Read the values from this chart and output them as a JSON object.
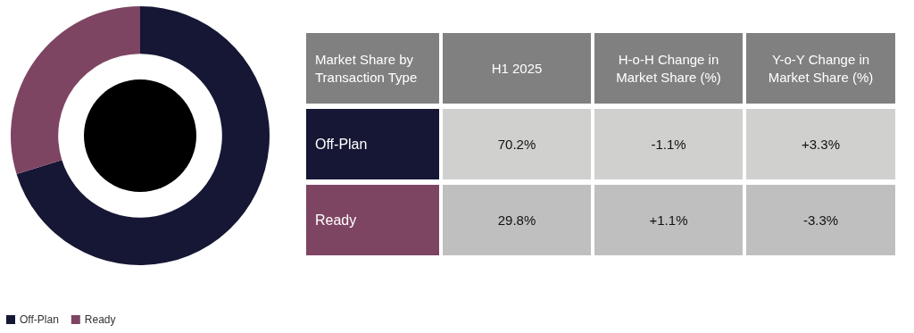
{
  "chart_data": [
    {
      "type": "donut",
      "categories": [
        "Off-Plan",
        "Ready"
      ],
      "values": [
        70.2,
        29.8
      ],
      "colors": [
        "#151734",
        "#7e4563"
      ],
      "legend": "bottom left"
    },
    {
      "type": "other",
      "title": "Market Share by Transaction Type",
      "categories": [
        "H1 2025",
        "H-o-H Change in Market Share (%)",
        "Y-o-Y Change in Market Share (%)"
      ],
      "y_categories": [
        "Off-Plan",
        "Ready"
      ],
      "cell_labels": [
        [
          "70.2%",
          "-1.1%",
          "+3.3%"
        ],
        [
          "29.8%",
          "+1.1%",
          "-3.3%"
        ]
      ]
    }
  ]
}
